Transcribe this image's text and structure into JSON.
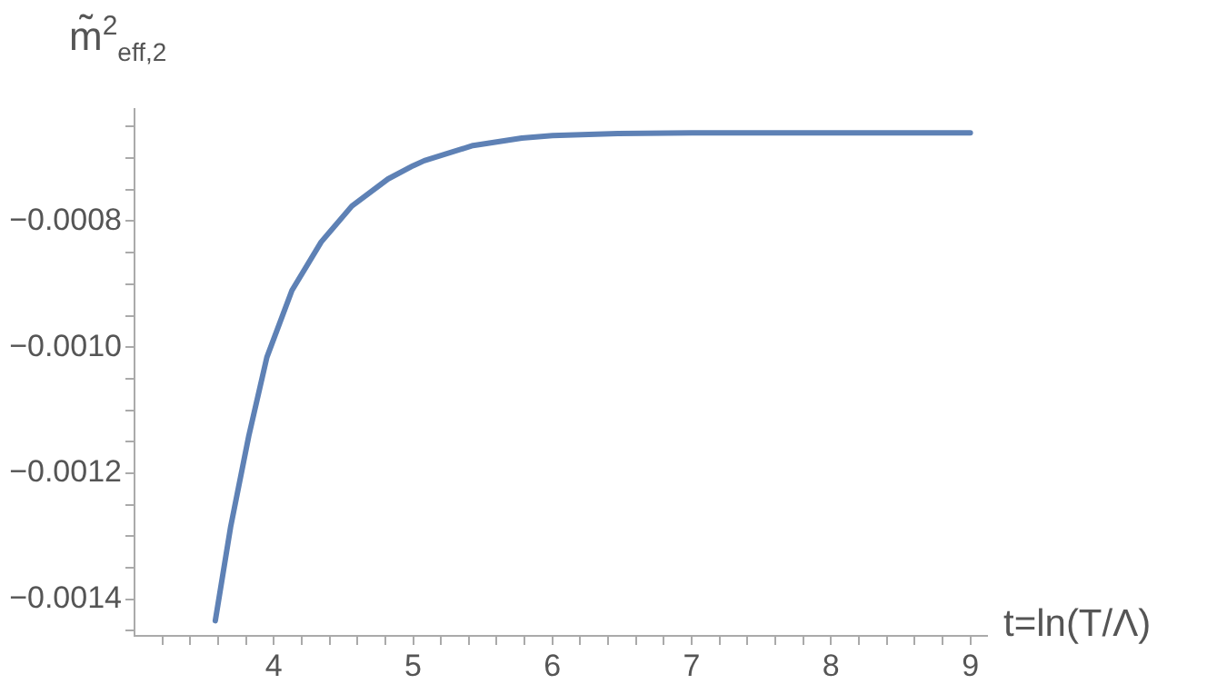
{
  "chart_data": {
    "type": "line",
    "xlabel": "t=ln(T/Λ)",
    "ylabel": "m̃$^{2}$$_{eff,2}$",
    "x": [
      3.58,
      3.69,
      3.82,
      3.95,
      4.13,
      4.34,
      4.56,
      4.82,
      5.0,
      5.08,
      5.43,
      5.78,
      6.0,
      6.47,
      7,
      8,
      9
    ],
    "series": [
      {
        "color": "#5e81b5",
        "values": [
          -0.001434,
          -0.001285,
          -0.001141,
          -0.001016,
          -0.00091,
          -0.000833,
          -0.000776,
          -0.000733,
          -0.000712,
          -0.000704,
          -0.00068,
          -0.000668,
          -0.000664,
          -0.000661,
          -0.00066,
          -0.00066,
          -0.00066
        ]
      }
    ],
    "xlim": [
      3,
      9.12
    ],
    "ylim": [
      -0.001458,
      -0.000622
    ],
    "xticks": [
      {
        "value": 3.2,
        "label": null
      },
      {
        "value": 3.4,
        "label": null
      },
      {
        "value": 3.6,
        "label": null
      },
      {
        "value": 3.8,
        "label": null
      },
      4,
      {
        "value": 4.2,
        "label": null
      },
      {
        "value": 4.4,
        "label": null
      },
      {
        "value": 4.6,
        "label": null
      },
      {
        "value": 4.8,
        "label": null
      },
      5,
      {
        "value": 5.2,
        "label": null
      },
      {
        "value": 5.4,
        "label": null
      },
      {
        "value": 5.6,
        "label": null
      },
      {
        "value": 5.8,
        "label": null
      },
      6,
      {
        "value": 6.2,
        "label": null
      },
      {
        "value": 6.4,
        "label": null
      },
      {
        "value": 6.6,
        "label": null
      },
      {
        "value": 6.8,
        "label": null
      },
      7,
      {
        "value": 7.2,
        "label": null
      },
      {
        "value": 7.4,
        "label": null
      },
      {
        "value": 7.6,
        "label": null
      },
      {
        "value": 7.8,
        "label": null
      },
      8,
      {
        "value": 8.2,
        "label": null
      },
      {
        "value": 8.4,
        "label": null
      },
      {
        "value": 8.6,
        "label": null
      },
      {
        "value": 8.8,
        "label": null
      },
      9
    ],
    "yticks": [
      {
        "value": -0.00145,
        "label": null
      },
      {
        "value": -0.0014,
        "label": "−0.0014"
      },
      {
        "value": -0.00135,
        "label": null
      },
      {
        "value": -0.0013,
        "label": null
      },
      {
        "value": -0.00125,
        "label": null
      },
      {
        "value": -0.0012,
        "label": "−0.0012"
      },
      {
        "value": -0.00115,
        "label": null
      },
      {
        "value": -0.0011,
        "label": null
      },
      {
        "value": -0.00105,
        "label": null
      },
      {
        "value": -0.001,
        "label": "−0.0010"
      },
      {
        "value": -0.00095,
        "label": null
      },
      {
        "value": -0.0009,
        "label": null
      },
      {
        "value": -0.00085,
        "label": null
      },
      {
        "value": -0.0008,
        "label": "−0.0008"
      },
      {
        "value": -0.00075,
        "label": null
      },
      {
        "value": -0.0007,
        "label": null
      },
      {
        "value": -0.00065,
        "label": null
      }
    ],
    "marker": "none",
    "line_style": "solid",
    "legend": false,
    "grid": false
  }
}
